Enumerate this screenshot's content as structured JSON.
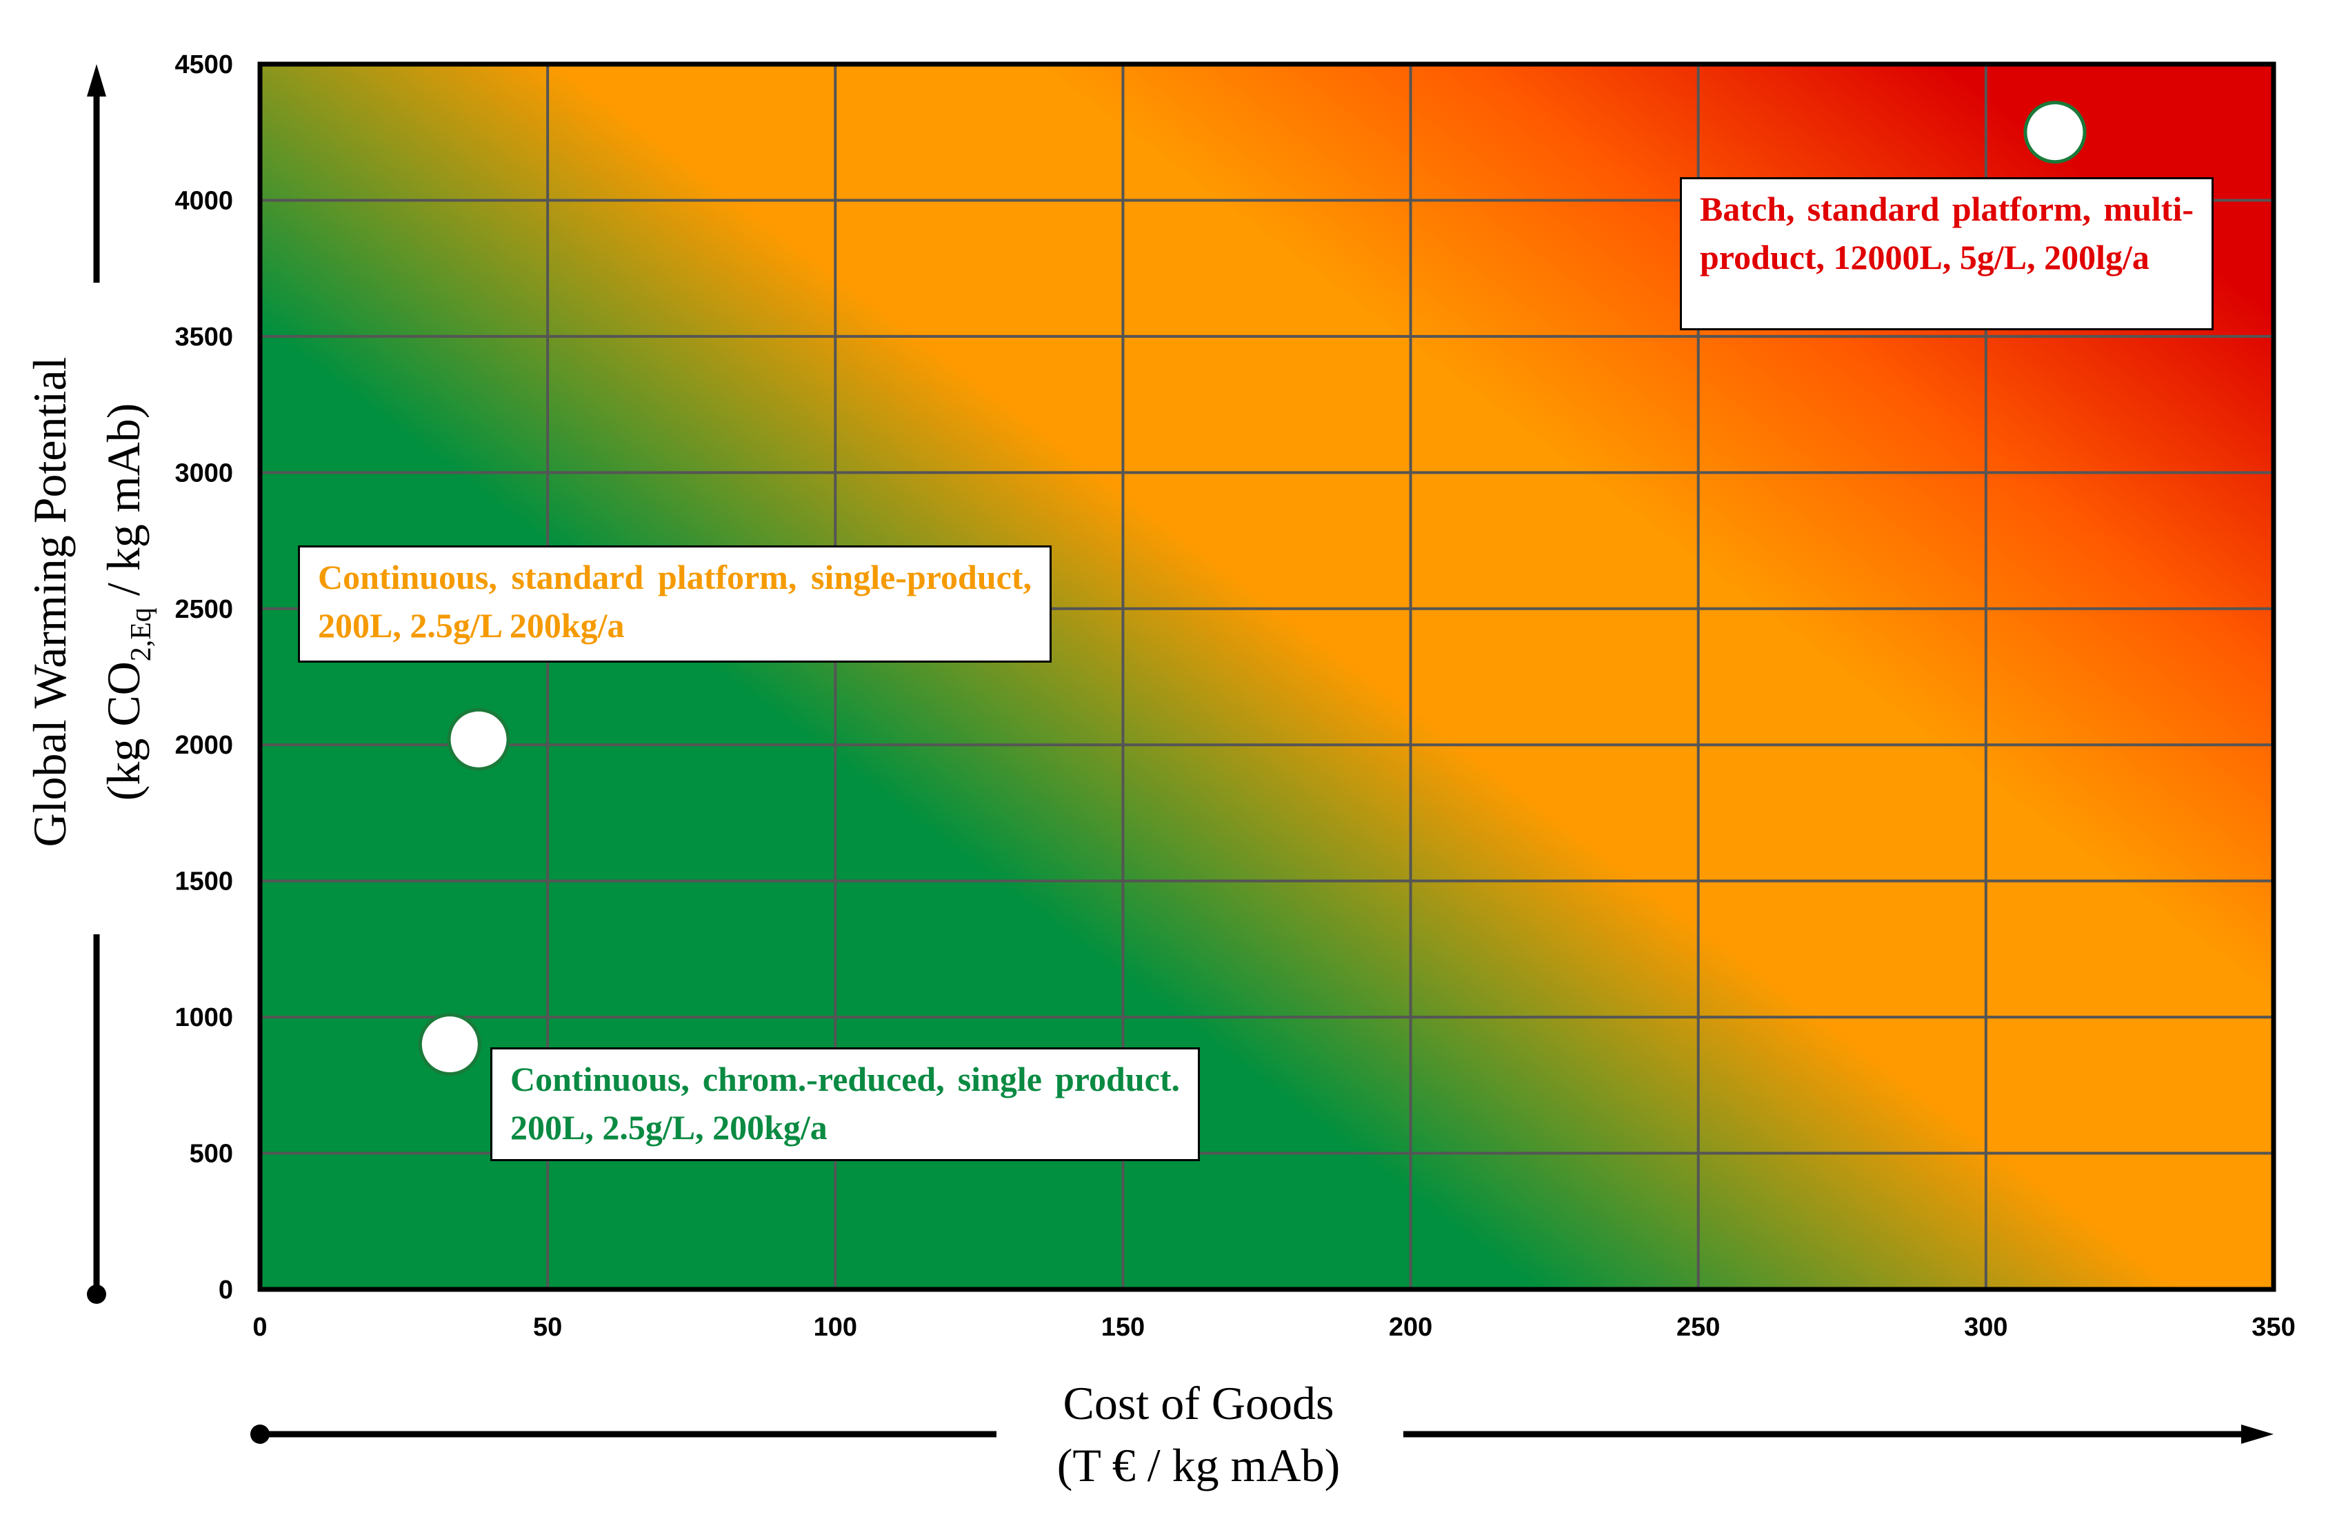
{
  "chart_data": {
    "type": "scatter",
    "title": "",
    "xlabel_line1": "Cost of Goods",
    "xlabel_line2": "(T € / kg mAb)",
    "ylabel_line1": "Global Warming Potential",
    "ylabel_line2_pre": "(kg CO",
    "ylabel_sub": "2,Eq",
    "ylabel_line2_post": " / kg mAb)",
    "xlim": [
      0,
      350
    ],
    "ylim": [
      0,
      4500
    ],
    "xticks": [
      0,
      50,
      100,
      150,
      200,
      250,
      300,
      350
    ],
    "yticks": [
      0,
      500,
      1000,
      1500,
      2000,
      2500,
      3000,
      3500,
      4000,
      4500
    ],
    "grid": true,
    "background": "gradient green (low cost, low GWP) to orange to red (high cost, high GWP)",
    "points": [
      {
        "name": "continuous-standard",
        "x": 38,
        "y": 2020,
        "label": "Continuous, standard platform, single-product, 200L, 2.5g/L 200kg/a",
        "label_color": "#F59A00"
      },
      {
        "name": "continuous-chrom-reduced",
        "x": 33,
        "y": 900,
        "label": "Continuous, chrom.-reduced, single product. 200L, 2.5g/L, 200kg/a",
        "label_color": "#0A8A42"
      },
      {
        "name": "batch-standard",
        "x": 312,
        "y": 4250,
        "label": "Batch, standard platform, multi-product, 12000L, 5g/L, 200lg/a",
        "label_color": "#E00000"
      }
    ]
  },
  "colors": {
    "green": "#00903F",
    "orange": "#FF9A00",
    "red": "#DC0000",
    "grid": "#555555"
  }
}
